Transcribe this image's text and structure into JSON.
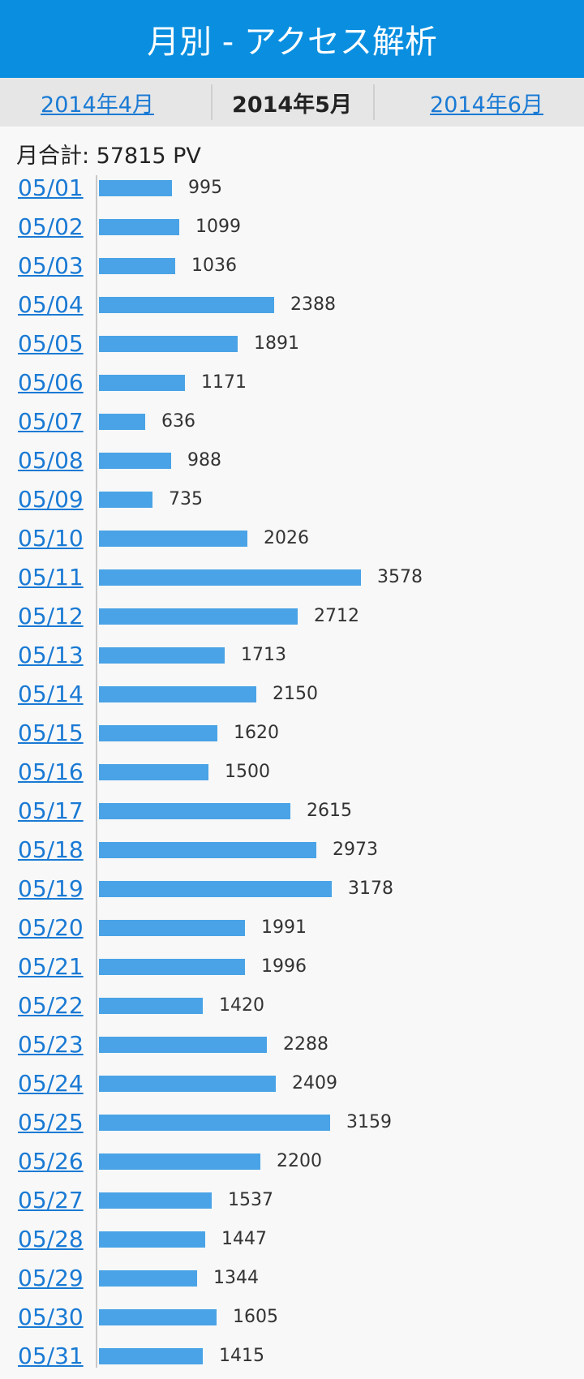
{
  "header": {
    "title": "月別 - アクセス解析"
  },
  "tabs": [
    {
      "label": "2014年4月",
      "current": false
    },
    {
      "label": "2014年5月",
      "current": true
    },
    {
      "label": "2014年6月",
      "current": false
    }
  ],
  "summary": {
    "label": "月合計: 57815 PV"
  },
  "colors": {
    "header_bg": "#0a8fe0",
    "bar": "#4aa3e6",
    "link": "#1a7ad4"
  },
  "chart_data": {
    "type": "bar",
    "orientation": "horizontal",
    "categories": [
      "05/01",
      "05/02",
      "05/03",
      "05/04",
      "05/05",
      "05/06",
      "05/07",
      "05/08",
      "05/09",
      "05/10",
      "05/11",
      "05/12",
      "05/13",
      "05/14",
      "05/15",
      "05/16",
      "05/17",
      "05/18",
      "05/19",
      "05/20",
      "05/21",
      "05/22",
      "05/23",
      "05/24",
      "05/25",
      "05/26",
      "05/27",
      "05/28",
      "05/29",
      "05/30",
      "05/31"
    ],
    "values": [
      995,
      1099,
      1036,
      2388,
      1891,
      1171,
      636,
      988,
      735,
      2026,
      3578,
      2712,
      1713,
      2150,
      1620,
      1500,
      2615,
      2973,
      3178,
      1991,
      1996,
      1420,
      2288,
      2409,
      3159,
      2200,
      1537,
      1447,
      1344,
      1605,
      1415
    ],
    "title": "",
    "xlabel": "",
    "ylabel": ""
  }
}
